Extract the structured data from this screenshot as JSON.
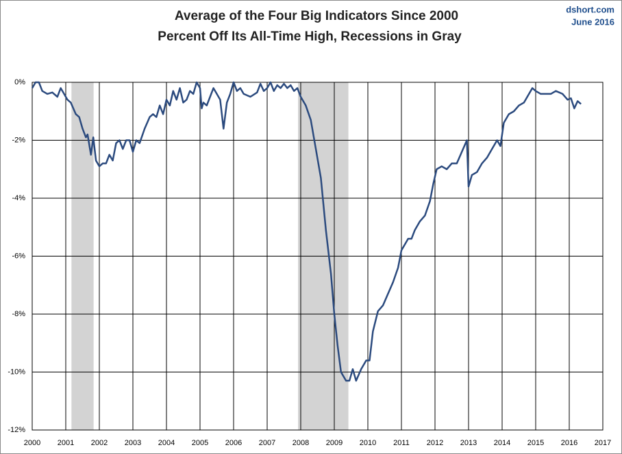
{
  "chart_data": {
    "type": "line",
    "title": "Average of the Four Big Indicators Since 2000",
    "subtitle": "Percent Off Its All-Time High, Recessions in Gray",
    "source": "dshort.com",
    "date": "June 2016",
    "color": "#2b4a7e",
    "recession_color": "#d3d3d3",
    "recessions": [
      [
        2001.17,
        2001.83
      ],
      [
        2007.92,
        2009.42
      ]
    ],
    "grid": true,
    "xlim": [
      2000,
      2017
    ],
    "xticks": [
      2000,
      2001,
      2002,
      2003,
      2004,
      2005,
      2006,
      2007,
      2008,
      2009,
      2010,
      2011,
      2012,
      2013,
      2014,
      2015,
      2016,
      2017
    ],
    "ylim": [
      -12,
      0
    ],
    "yticks": [
      {
        "value": 0,
        "label": "0%"
      },
      {
        "value": -2,
        "label": "-2%"
      },
      {
        "value": -4,
        "label": "-4%"
      },
      {
        "value": -6,
        "label": "-6%"
      },
      {
        "value": -8,
        "label": "-8%"
      },
      {
        "value": -10,
        "label": "-10%"
      },
      {
        "value": -12,
        "label": "-12%"
      }
    ],
    "x": [
      2000.0,
      2000.1,
      2000.2,
      2000.3,
      2000.45,
      2000.6,
      2000.75,
      2000.85,
      2000.95,
      2001.05,
      2001.15,
      2001.3,
      2001.4,
      2001.5,
      2001.6,
      2001.65,
      2001.75,
      2001.82,
      2001.9,
      2002.0,
      2002.1,
      2002.2,
      2002.3,
      2002.4,
      2002.5,
      2002.6,
      2002.7,
      2002.8,
      2002.9,
      2003.0,
      2003.1,
      2003.2,
      2003.35,
      2003.5,
      2003.6,
      2003.7,
      2003.8,
      2003.9,
      2004.0,
      2004.1,
      2004.2,
      2004.3,
      2004.4,
      2004.5,
      2004.6,
      2004.7,
      2004.8,
      2004.9,
      2005.0,
      2005.05,
      2005.1,
      2005.2,
      2005.3,
      2005.4,
      2005.5,
      2005.6,
      2005.7,
      2005.8,
      2005.9,
      2006.0,
      2006.1,
      2006.2,
      2006.3,
      2006.5,
      2006.7,
      2006.8,
      2006.9,
      2007.0,
      2007.1,
      2007.2,
      2007.3,
      2007.4,
      2007.5,
      2007.6,
      2007.7,
      2007.8,
      2007.9,
      2008.0,
      2008.15,
      2008.3,
      2008.45,
      2008.6,
      2008.75,
      2008.9,
      2009.0,
      2009.1,
      2009.2,
      2009.35,
      2009.45,
      2009.55,
      2009.65,
      2009.8,
      2009.95,
      2010.05,
      2010.15,
      2010.3,
      2010.45,
      2010.6,
      2010.75,
      2010.9,
      2011.0,
      2011.1,
      2011.2,
      2011.3,
      2011.4,
      2011.55,
      2011.7,
      2011.85,
      2011.95,
      2012.05,
      2012.2,
      2012.35,
      2012.5,
      2012.65,
      2012.8,
      2012.95,
      2013.0,
      2013.1,
      2013.25,
      2013.4,
      2013.55,
      2013.7,
      2013.85,
      2013.95,
      2014.05,
      2014.2,
      2014.35,
      2014.5,
      2014.65,
      2014.75,
      2014.9,
      2015.0,
      2015.15,
      2015.3,
      2015.45,
      2015.6,
      2015.8,
      2015.95,
      2016.05,
      2016.15,
      2016.25,
      2016.35
    ],
    "values": [
      -0.2,
      0.0,
      0.0,
      -0.3,
      -0.4,
      -0.35,
      -0.5,
      -0.2,
      -0.4,
      -0.6,
      -0.7,
      -1.1,
      -1.2,
      -1.6,
      -1.9,
      -1.8,
      -2.5,
      -1.9,
      -2.7,
      -2.9,
      -2.8,
      -2.8,
      -2.5,
      -2.7,
      -2.1,
      -2.0,
      -2.3,
      -2.0,
      -2.0,
      -2.4,
      -2.0,
      -2.1,
      -1.6,
      -1.2,
      -1.1,
      -1.2,
      -0.8,
      -1.1,
      -0.6,
      -0.8,
      -0.3,
      -0.6,
      -0.2,
      -0.7,
      -0.6,
      -0.3,
      -0.4,
      0.0,
      -0.2,
      -0.9,
      -0.7,
      -0.8,
      -0.5,
      -0.2,
      -0.4,
      -0.6,
      -1.6,
      -0.7,
      -0.4,
      0.0,
      -0.3,
      -0.2,
      -0.4,
      -0.5,
      -0.35,
      -0.05,
      -0.3,
      -0.2,
      0.0,
      -0.3,
      -0.1,
      -0.2,
      -0.05,
      -0.2,
      -0.1,
      -0.3,
      -0.2,
      -0.5,
      -0.8,
      -1.3,
      -2.3,
      -3.3,
      -5.1,
      -6.6,
      -8.0,
      -9.1,
      -10.0,
      -10.3,
      -10.3,
      -9.9,
      -10.3,
      -9.9,
      -9.6,
      -9.6,
      -8.6,
      -7.9,
      -7.7,
      -7.3,
      -6.9,
      -6.4,
      -5.8,
      -5.6,
      -5.4,
      -5.4,
      -5.1,
      -4.8,
      -4.6,
      -4.1,
      -3.5,
      -3.0,
      -2.9,
      -3.0,
      -2.8,
      -2.8,
      -2.4,
      -2.0,
      -3.6,
      -3.2,
      -3.1,
      -2.8,
      -2.6,
      -2.3,
      -2.0,
      -2.2,
      -1.4,
      -1.1,
      -1.0,
      -0.8,
      -0.7,
      -0.5,
      -0.2,
      -0.3,
      -0.4,
      -0.4,
      -0.4,
      -0.3,
      -0.4,
      -0.6,
      -0.55,
      -0.9,
      -0.65,
      -0.75
    ]
  }
}
